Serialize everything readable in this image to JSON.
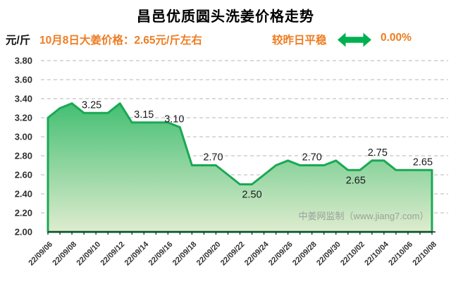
{
  "header": {
    "title": "昌邑优质圆头洗姜价格走势",
    "y_unit": "元/斤",
    "price_note": "10月8日大姜价格：2.65元/斤左右",
    "trend_text": "较昨日平稳",
    "trend_icon": "double-headed-horizontal-arrow",
    "trend_pct": "0.00%"
  },
  "watermark": "中姜网监制（www.jiang7.com）",
  "colors": {
    "orange": "#ee7d22",
    "arrow_green": "#00b050",
    "line": "#1aa854",
    "fill_top": "#44bf73",
    "fill_bottom": "#dfeccf",
    "grid": "#b5b5b5",
    "axis": "#222222",
    "axis_text": "#303030",
    "watermark_gray": "#97a298"
  },
  "chart_data": {
    "type": "area",
    "title": "昌邑优质圆头洗姜价格走势",
    "ylabel": "元/斤",
    "ylim": [
      2.0,
      3.8
    ],
    "ytick_step": 0.2,
    "grid": "horizontal-dashed",
    "legend": "none",
    "x_label_every": 2,
    "x": [
      "22/09/06",
      "22/09/07",
      "22/09/08",
      "22/09/09",
      "22/09/10",
      "22/09/11",
      "22/09/12",
      "22/09/13",
      "22/09/14",
      "22/09/15",
      "22/09/16",
      "22/09/17",
      "22/09/18",
      "22/09/19",
      "22/09/20",
      "22/09/21",
      "22/09/22",
      "22/09/23",
      "22/09/24",
      "22/09/25",
      "22/09/26",
      "22/09/27",
      "22/09/28",
      "22/09/29",
      "22/09/30",
      "22/10/01",
      "22/10/02",
      "22/10/03",
      "22/10/04",
      "22/10/05",
      "22/10/06",
      "22/10/07",
      "22/10/08"
    ],
    "values": [
      3.2,
      3.3,
      3.35,
      3.25,
      3.25,
      3.25,
      3.35,
      3.15,
      3.15,
      3.15,
      3.15,
      3.1,
      2.7,
      2.7,
      2.7,
      2.6,
      2.5,
      2.5,
      2.6,
      2.7,
      2.75,
      2.7,
      2.7,
      2.7,
      2.75,
      2.65,
      2.65,
      2.75,
      2.75,
      2.65,
      2.65,
      2.65,
      2.65
    ],
    "point_labels": [
      {
        "i": 4,
        "text": "3.25",
        "pos": "above",
        "dx": -6
      },
      {
        "i": 8,
        "text": "3.15",
        "pos": "above",
        "dx": 0
      },
      {
        "i": 11,
        "text": "3.10",
        "pos": "above",
        "dx": -8
      },
      {
        "i": 14,
        "text": "2.70",
        "pos": "above",
        "dx": -4
      },
      {
        "i": 17,
        "text": "2.50",
        "pos": "below",
        "dx": 0
      },
      {
        "i": 22,
        "text": "2.70",
        "pos": "above",
        "dx": 0
      },
      {
        "i": 26,
        "text": "2.65",
        "pos": "below",
        "dx": -6
      },
      {
        "i": 27,
        "text": "2.75",
        "pos": "above",
        "dx": 8
      },
      {
        "i": 31,
        "text": "2.65",
        "pos": "above",
        "dx": 4
      }
    ]
  }
}
